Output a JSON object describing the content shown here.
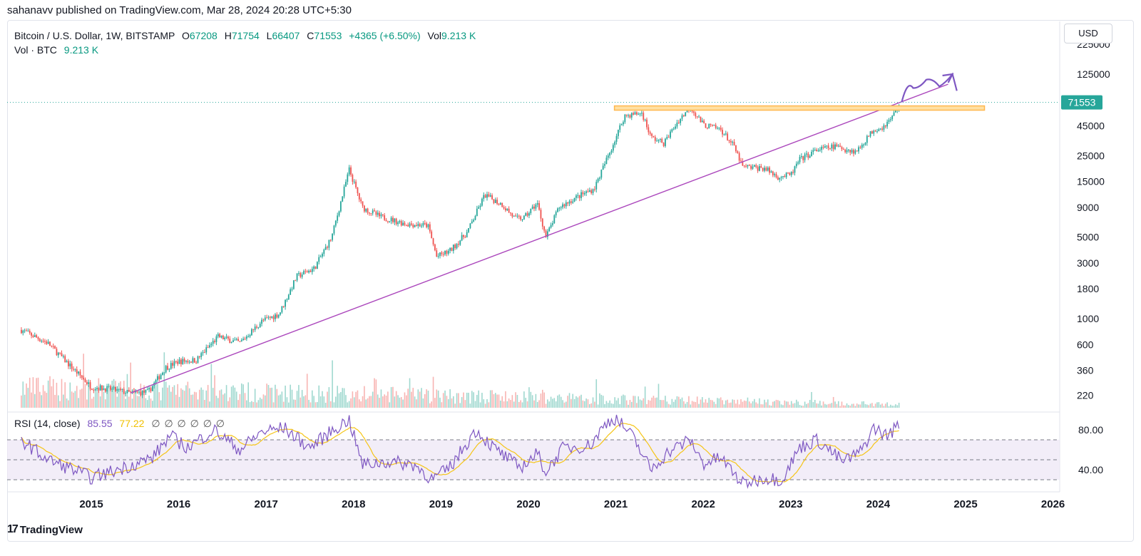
{
  "header": {
    "published": "sahanavv published on TradingView.com, Mar 28, 2024 20:28 UTC+5:30"
  },
  "legend": {
    "symbol": "Bitcoin / U.S. Dollar, 1W, BITSTAMP",
    "o_label": "O",
    "o": "67208",
    "h_label": "H",
    "h": "71754",
    "l_label": "L",
    "l": "66407",
    "c_label": "C",
    "c": "71553",
    "change": "+4365 (+6.50%)",
    "vol_label": "Vol",
    "vol": "9.213 K",
    "vol_line_label": "Vol · BTC",
    "vol_line_value": "9.213 K"
  },
  "rsi_legend": {
    "label": "RSI (14, close)",
    "value": "85.55",
    "ma": "77.22",
    "na": "∅ ∅ ∅ ∅ ∅ ∅"
  },
  "currency_button": "USD",
  "footer": {
    "brand": "TradingView",
    "logo": "17"
  },
  "colors": {
    "up": "#26a69a",
    "down": "#ef5350",
    "trend": "#ab47bc",
    "resistance": "#ffb74d",
    "rsi": "#7e57c2",
    "rsi_ma": "#f5c518",
    "band": "#ede7f6"
  },
  "chart_data": {
    "type": "candlestick",
    "title": "Bitcoin / U.S. Dollar, 1W, BITSTAMP",
    "scale": "log",
    "y_ticks": [
      220,
      360,
      600,
      1000,
      1800,
      3000,
      5000,
      9000,
      15000,
      25000,
      45000,
      125000,
      225000
    ],
    "y_ticks_labels": [
      "220",
      "360",
      "600",
      "1000",
      "1800",
      "3000",
      "5000",
      "9000",
      "15000",
      "25000",
      "45000",
      "125000",
      "225000"
    ],
    "current_price": 71553,
    "current_price_label": "71553",
    "x_ticks": [
      "2015",
      "2016",
      "2017",
      "2018",
      "2019",
      "2020",
      "2021",
      "2022",
      "2023",
      "2024",
      "2025",
      "2026"
    ],
    "price_anchors": [
      [
        2014.2,
        800
      ],
      [
        2014.5,
        620
      ],
      [
        2014.75,
        400
      ],
      [
        2015.0,
        260
      ],
      [
        2015.2,
        250
      ],
      [
        2015.45,
        230
      ],
      [
        2015.65,
        235
      ],
      [
        2015.85,
        380
      ],
      [
        2016.0,
        430
      ],
      [
        2016.2,
        440
      ],
      [
        2016.45,
        700
      ],
      [
        2016.7,
        620
      ],
      [
        2016.95,
        950
      ],
      [
        2017.15,
        1100
      ],
      [
        2017.35,
        2300
      ],
      [
        2017.55,
        2700
      ],
      [
        2017.75,
        5000
      ],
      [
        2017.95,
        19000
      ],
      [
        2018.1,
        9000
      ],
      [
        2018.3,
        7500
      ],
      [
        2018.6,
        6500
      ],
      [
        2018.85,
        6300
      ],
      [
        2018.95,
        3400
      ],
      [
        2019.1,
        3800
      ],
      [
        2019.3,
        5500
      ],
      [
        2019.5,
        11500
      ],
      [
        2019.7,
        9500
      ],
      [
        2019.85,
        7200
      ],
      [
        2019.95,
        7300
      ],
      [
        2020.1,
        9800
      ],
      [
        2020.2,
        5000
      ],
      [
        2020.35,
        9000
      ],
      [
        2020.55,
        11000
      ],
      [
        2020.75,
        13000
      ],
      [
        2020.95,
        29000
      ],
      [
        2021.1,
        55000
      ],
      [
        2021.3,
        58000
      ],
      [
        2021.4,
        36000
      ],
      [
        2021.55,
        32000
      ],
      [
        2021.7,
        48000
      ],
      [
        2021.85,
        66000
      ],
      [
        2022.0,
        46000
      ],
      [
        2022.2,
        42000
      ],
      [
        2022.35,
        30000
      ],
      [
        2022.45,
        20000
      ],
      [
        2022.7,
        19500
      ],
      [
        2022.85,
        16500
      ],
      [
        2023.0,
        17000
      ],
      [
        2023.1,
        23000
      ],
      [
        2023.3,
        28000
      ],
      [
        2023.5,
        30000
      ],
      [
        2023.75,
        27000
      ],
      [
        2023.95,
        42000
      ],
      [
        2024.05,
        44000
      ],
      [
        2024.15,
        52000
      ],
      [
        2024.25,
        71553
      ]
    ],
    "trendline": {
      "start": [
        2015.45,
        230
      ],
      "end": [
        2024.25,
        71553
      ]
    },
    "resistance": {
      "from": 2021.0,
      "to": 2025.2,
      "price": 64000
    },
    "projection": [
      [
        2024.27,
        72000
      ],
      [
        2024.4,
        95000
      ],
      [
        2024.55,
        112000
      ],
      [
        2024.7,
        98000
      ],
      [
        2024.85,
        125000
      ],
      [
        2024.9,
        90000
      ]
    ],
    "rsi": {
      "levels": [
        30,
        50,
        70
      ],
      "labels": [
        "80.00",
        "40.00"
      ],
      "label_values": [
        80,
        40
      ],
      "anchors": [
        [
          2014.2,
          70
        ],
        [
          2014.5,
          50
        ],
        [
          2014.8,
          40
        ],
        [
          2015.0,
          32
        ],
        [
          2015.3,
          40
        ],
        [
          2015.7,
          52
        ],
        [
          2015.9,
          74
        ],
        [
          2016.1,
          62
        ],
        [
          2016.4,
          80
        ],
        [
          2016.7,
          60
        ],
        [
          2016.95,
          78
        ],
        [
          2017.2,
          82
        ],
        [
          2017.5,
          62
        ],
        [
          2017.8,
          82
        ],
        [
          2017.95,
          90
        ],
        [
          2018.1,
          45
        ],
        [
          2018.4,
          48
        ],
        [
          2018.7,
          45
        ],
        [
          2018.9,
          30
        ],
        [
          2019.1,
          42
        ],
        [
          2019.4,
          80
        ],
        [
          2019.6,
          62
        ],
        [
          2019.9,
          42
        ],
        [
          2020.1,
          56
        ],
        [
          2020.2,
          38
        ],
        [
          2020.4,
          62
        ],
        [
          2020.7,
          64
        ],
        [
          2020.9,
          88
        ],
        [
          2021.0,
          92
        ],
        [
          2021.2,
          72
        ],
        [
          2021.4,
          40
        ],
        [
          2021.6,
          58
        ],
        [
          2021.85,
          70
        ],
        [
          2022.0,
          46
        ],
        [
          2022.2,
          52
        ],
        [
          2022.45,
          26
        ],
        [
          2022.7,
          32
        ],
        [
          2022.9,
          30
        ],
        [
          2023.1,
          62
        ],
        [
          2023.3,
          70
        ],
        [
          2023.6,
          48
        ],
        [
          2023.8,
          58
        ],
        [
          2023.95,
          82
        ],
        [
          2024.1,
          74
        ],
        [
          2024.25,
          86
        ]
      ]
    }
  }
}
